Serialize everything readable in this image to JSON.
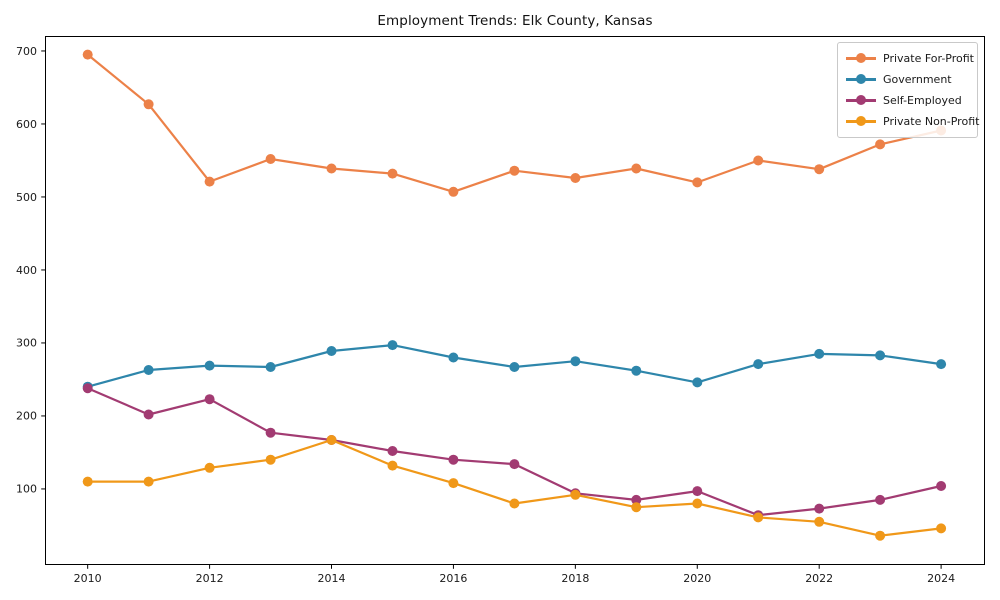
{
  "chart_data": {
    "type": "line",
    "title": "Employment Trends: Elk County, Kansas",
    "xlabel": "",
    "ylabel": "",
    "grid": false,
    "legend_position": "upper right",
    "background_color": "#ffffff",
    "axis_color": "#000000",
    "tick_label_color": "#1a1a1a",
    "x": [
      2010,
      2011,
      2012,
      2013,
      2014,
      2015,
      2016,
      2017,
      2018,
      2019,
      2020,
      2021,
      2022,
      2023,
      2024
    ],
    "x_ticks": [
      2010,
      2012,
      2014,
      2016,
      2018,
      2020,
      2022,
      2024
    ],
    "y_ticks": [
      100,
      200,
      300,
      400,
      500,
      600,
      700
    ],
    "xlim": [
      2009.3,
      2024.72
    ],
    "ylim": [
      -4.2,
      720.5
    ],
    "marker": "o",
    "series": [
      {
        "name": "Private For-Profit",
        "color": "#EC8148",
        "values": [
          695,
          627,
          521,
          552,
          539,
          532,
          507,
          536,
          526,
          539,
          520,
          550,
          538,
          572,
          591
        ]
      },
      {
        "name": "Government",
        "color": "#2E86AB",
        "values": [
          240,
          263,
          269,
          267,
          289,
          297,
          280,
          267,
          275,
          262,
          246,
          271,
          285,
          283,
          271
        ]
      },
      {
        "name": "Self-Employed",
        "color": "#A23B72",
        "values": [
          238,
          202,
          223,
          177,
          167,
          152,
          140,
          134,
          94,
          85,
          97,
          64,
          73,
          85,
          104
        ]
      },
      {
        "name": "Private Non-Profit",
        "color": "#F09819",
        "values": [
          110,
          110,
          129,
          140,
          167,
          132,
          108,
          80,
          92,
          75,
          80,
          61,
          55,
          36,
          46
        ]
      }
    ]
  }
}
